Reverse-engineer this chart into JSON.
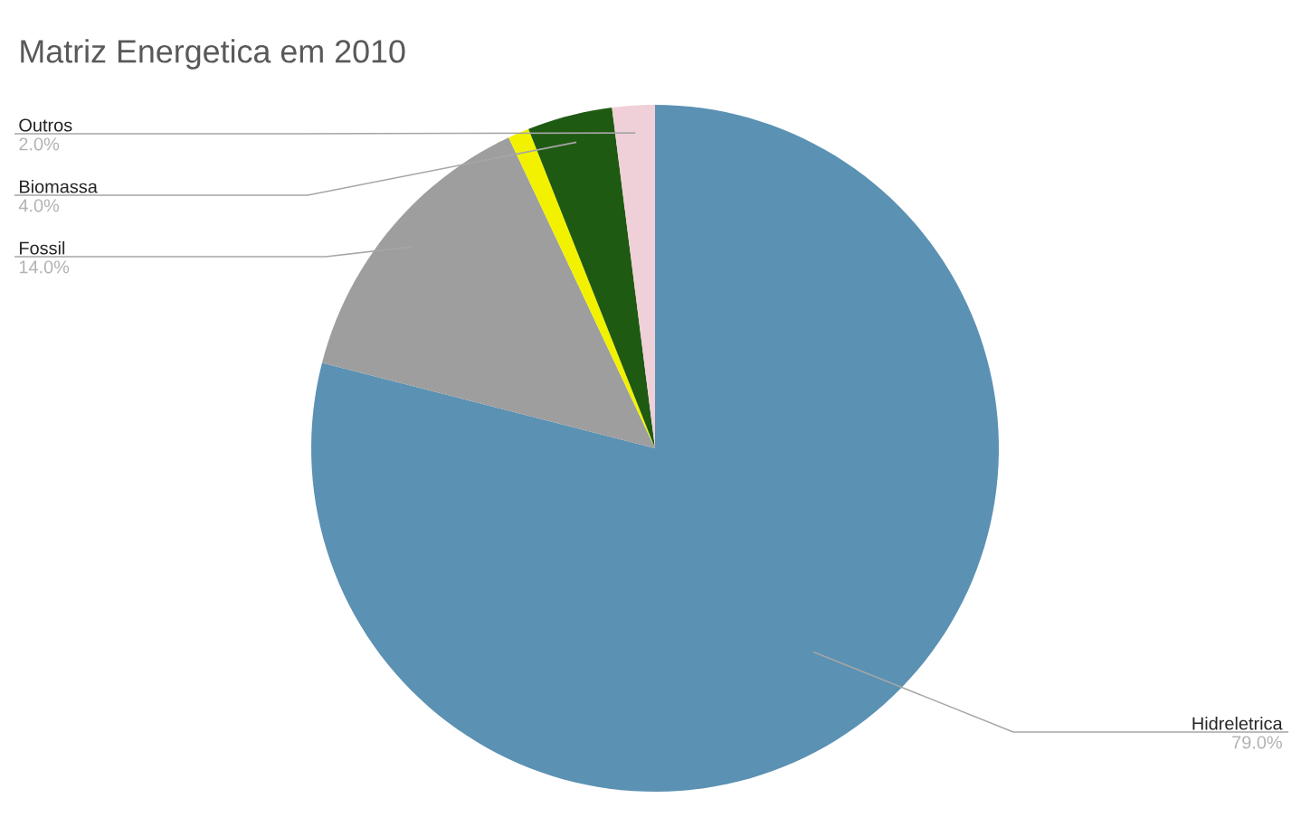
{
  "chart_data": {
    "type": "pie",
    "title": "Matriz Energetica em 2010",
    "categories": [
      "Hidreletrica",
      "Fossil",
      null,
      "Biomassa",
      "Outros"
    ],
    "values": [
      79,
      14,
      1,
      4,
      2
    ],
    "value_labels": [
      "79.0%",
      "14.0%",
      null,
      "4.0%",
      "2.0%"
    ],
    "colors": [
      "#5b91b3",
      "#9e9e9e",
      "#f2f200",
      "#1f5a12",
      "#f0d0d8"
    ]
  }
}
